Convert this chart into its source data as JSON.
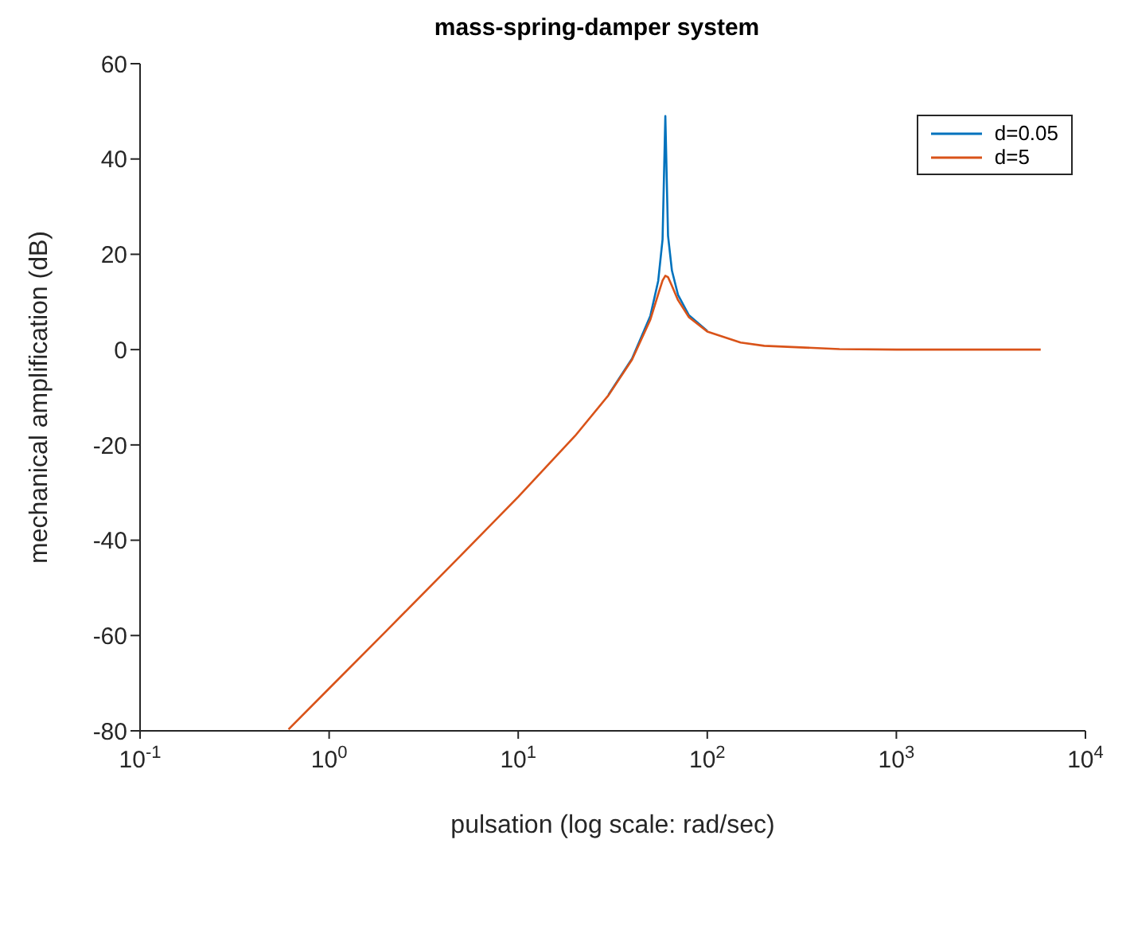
{
  "chart_data": {
    "type": "line",
    "title": "mass-spring-damper system",
    "xlabel": "pulsation (log scale: rad/sec)",
    "ylabel": "mechanical amplification (dB)",
    "x": [
      0.61,
      1,
      2,
      5,
      10,
      20,
      30,
      40,
      50,
      55,
      58,
      60,
      62,
      65,
      70,
      80,
      100,
      150,
      200,
      500,
      1000,
      2000,
      5800
    ],
    "series": [
      {
        "name": "d=0.05",
        "color": "#0072bd",
        "values": [
          null,
          null,
          null,
          null,
          null,
          null,
          -9.5,
          -1.9,
          7.1,
          14.4,
          23.1,
          49,
          23.9,
          16.6,
          11.5,
          7.2,
          3.9,
          null,
          null,
          null,
          null,
          null,
          null
        ]
      },
      {
        "name": "d=5",
        "color": "#d95319",
        "values": [
          -79.7,
          -71.1,
          -59.1,
          -43.1,
          -30.9,
          -18.1,
          -9.6,
          -2.1,
          6.3,
          11.6,
          14.5,
          15.5,
          15.2,
          13.4,
          10.4,
          6.8,
          3.8,
          1.5,
          0.8,
          0.1,
          0,
          0,
          0
        ]
      }
    ],
    "log": "x",
    "xlim": [
      0.1,
      10000
    ],
    "xticks": [
      {
        "value": 0.1,
        "label": "10$^{-1}$"
      },
      {
        "value": 1,
        "label": "10$^{0}$"
      },
      {
        "value": 10,
        "label": "10$^{1}$"
      },
      {
        "value": 100,
        "label": "10$^{2}$"
      },
      {
        "value": 1000,
        "label": "10$^{3}$"
      },
      {
        "value": 10000,
        "label": "10$^{4}$"
      }
    ],
    "ylim": [
      -80,
      60
    ],
    "yticks": [
      -80,
      -60,
      -40,
      -20,
      0,
      20,
      40,
      60
    ],
    "grid": false,
    "legend": "top right",
    "marker": "none",
    "line_style": "solid"
  }
}
